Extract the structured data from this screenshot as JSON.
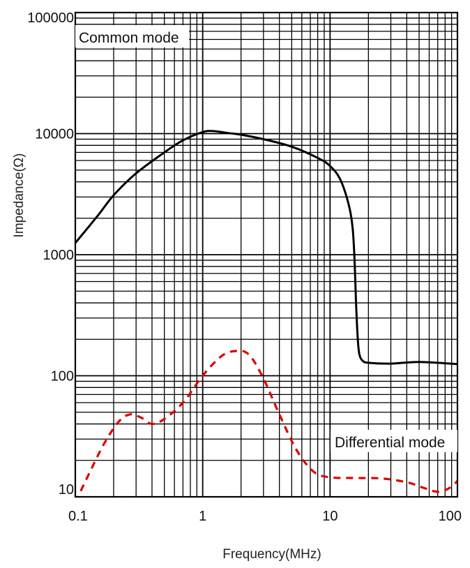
{
  "chart_data": {
    "type": "line",
    "xlabel": "Frequency(MHz)",
    "ylabel": "Impedance(Ω)",
    "x_scale": "log",
    "y_scale": "log",
    "xlim": [
      0.1,
      100
    ],
    "ylim": [
      10,
      100000
    ],
    "grid": true,
    "x_ticks": [
      {
        "value": 0.1,
        "label": "0.1"
      },
      {
        "value": 1,
        "label": "1"
      },
      {
        "value": 10,
        "label": "10"
      },
      {
        "value": 100,
        "label": "100"
      }
    ],
    "y_ticks": [
      {
        "value": 10,
        "label": "10"
      },
      {
        "value": 100,
        "label": "100"
      },
      {
        "value": 1000,
        "label": "1000"
      },
      {
        "value": 10000,
        "label": "10000"
      },
      {
        "value": 100000,
        "label": "100000"
      }
    ],
    "series": [
      {
        "name": "Common mode",
        "color": "#000000",
        "line_style": "solid",
        "legend_position": "top-left",
        "x": [
          0.1,
          0.15,
          0.2,
          0.3,
          0.5,
          0.7,
          1.0,
          1.2,
          1.6,
          2.0,
          3.0,
          5.0,
          8.0,
          10,
          12,
          14,
          15,
          15.5,
          16,
          16.5,
          17,
          18,
          20,
          30,
          50,
          100
        ],
        "y": [
          1250,
          2100,
          3100,
          4700,
          7000,
          8800,
          10300,
          10500,
          10100,
          9800,
          9000,
          7800,
          6300,
          5400,
          4200,
          2600,
          1700,
          1000,
          400,
          200,
          150,
          133,
          128,
          126,
          130,
          125
        ]
      },
      {
        "name": "Differential mode",
        "color": "#dd0000",
        "line_style": "dashed",
        "legend_position": "bottom-right",
        "x": [
          0.1,
          0.13,
          0.17,
          0.22,
          0.27,
          0.33,
          0.4,
          0.5,
          0.7,
          1.0,
          1.4,
          1.8,
          2.3,
          3.0,
          4.0,
          5.5,
          7.5,
          10,
          15,
          25,
          40,
          55,
          70,
          85,
          100
        ],
        "y": [
          9,
          16,
          28,
          42,
          48,
          45,
          40,
          44,
          60,
          100,
          145,
          160,
          150,
          95,
          48,
          24,
          16,
          14.5,
          14.3,
          14.2,
          13.2,
          11.8,
          11,
          11.7,
          13.5
        ]
      }
    ]
  }
}
